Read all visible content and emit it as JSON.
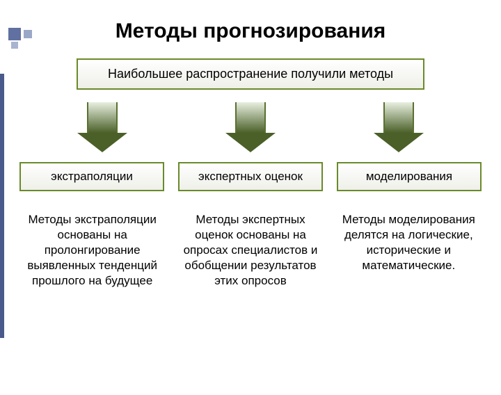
{
  "title": "Методы прогнозирования",
  "header_box": {
    "text": "Наибольшее распространение получили методы",
    "border_color": "#6a8a2a",
    "bg_gradient_top": "#ffffff",
    "bg_gradient_bottom": "#eef0e8"
  },
  "arrows": {
    "count": 3,
    "shaft_gradient_top": "#e8efe0",
    "shaft_gradient_bottom": "#4a6028",
    "border_color": "#5a7030",
    "head_color": "#4a6028"
  },
  "methods": [
    {
      "label": "экстраполяции",
      "description": "Методы экстраполяции основаны на пролонгирование выявленных тенденций прошлого на будущее"
    },
    {
      "label": "экспертных оценок",
      "description": "Методы экспертных оценок основаны на опросах специалистов и обобщении результатов этих опросов"
    },
    {
      "label": "моделирования",
      "description": "Методы моделирования делятся на логические, исторические и математические."
    }
  ],
  "method_box_style": {
    "border_color": "#6a8a2a"
  },
  "decoration": {
    "sidebar_color": "#4a5a8a",
    "square_colors": [
      "#6070a0",
      "#a8b4d0",
      "#9aa8c8"
    ]
  }
}
